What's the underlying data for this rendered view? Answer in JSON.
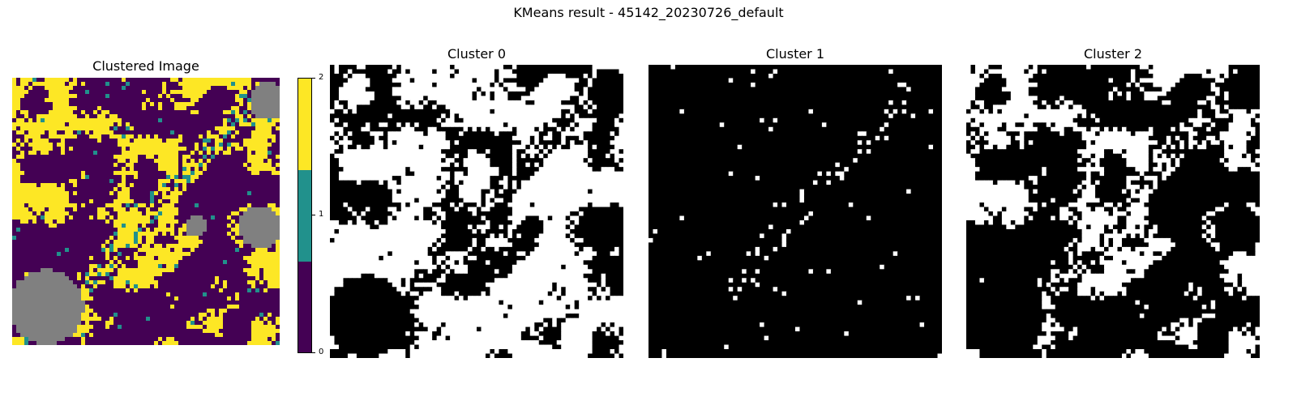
{
  "suptitle": "KMeans result - 45142_20230726_default",
  "panels": [
    {
      "title": "Clustered Image"
    },
    {
      "title": "Cluster 0"
    },
    {
      "title": "Cluster 1"
    },
    {
      "title": "Cluster 2"
    }
  ],
  "colorbar": {
    "ticks": [
      "0",
      "1",
      "2"
    ],
    "colors": [
      "#440154",
      "#21918c",
      "#fde725"
    ]
  },
  "nodata_color": "#808080",
  "chart_data": [
    {
      "type": "heatmap",
      "title": "Clustered Image",
      "description_values": "categorical cluster labels 0, 1, 2 with masked (no-data) areas",
      "colormap": "viridis",
      "colorbar_ticks": [
        0,
        1,
        2
      ],
      "clim": [
        0,
        2
      ],
      "axes": "off"
    },
    {
      "type": "heatmap",
      "title": "Cluster 0",
      "colormap": "binary mask (black=0, white=1)",
      "axes": "off"
    },
    {
      "type": "heatmap",
      "title": "Cluster 1",
      "colormap": "binary mask (black=0, white=1)",
      "axes": "off"
    },
    {
      "type": "heatmap",
      "title": "Cluster 2",
      "colormap": "binary mask (black=0, white=1)",
      "axes": "off"
    }
  ]
}
